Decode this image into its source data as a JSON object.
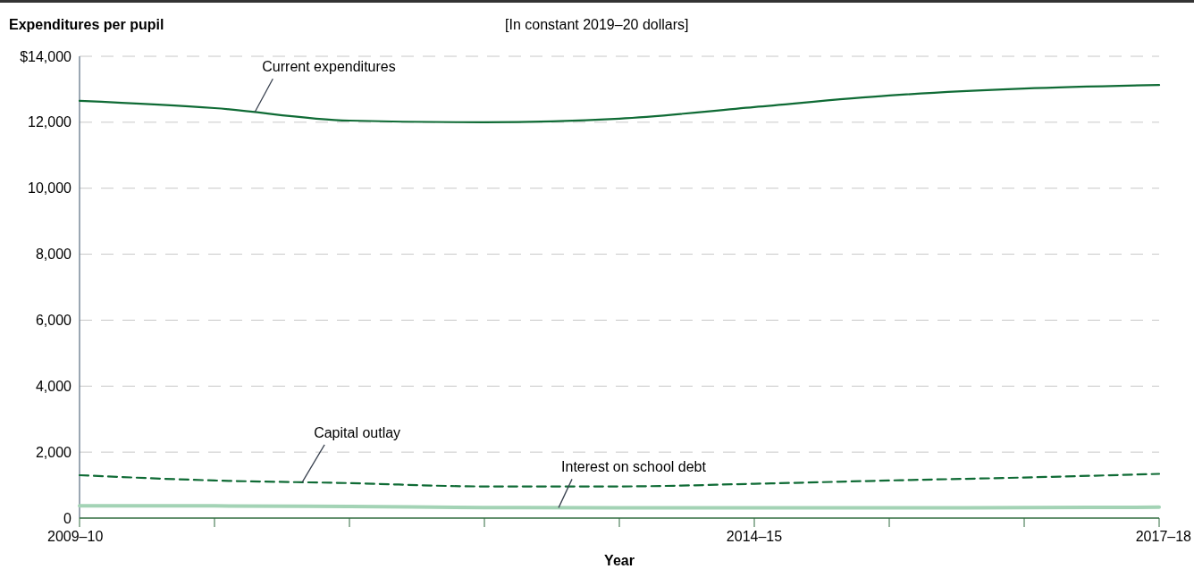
{
  "chart_data": {
    "type": "line",
    "subtitle": "[In constant 2019–20 dollars]",
    "ylabel": "Expenditures per pupil",
    "xlabel": "Year",
    "categories": [
      "2009–10",
      null,
      null,
      null,
      null,
      "2014–15",
      null,
      null,
      "2017–18"
    ],
    "series": [
      {
        "name": "Current expenditures",
        "color": "#0f6b35",
        "line_style": "solid",
        "values": [
          12650,
          12430,
          12050,
          12000,
          12110,
          12460,
          12810,
          13020,
          13130
        ]
      },
      {
        "name": "Capital outlay",
        "color": "#0f6b35",
        "line_style": "dashed",
        "values": [
          1300,
          1140,
          1060,
          960,
          960,
          1040,
          1140,
          1230,
          1340
        ]
      },
      {
        "name": "Interest on school debt",
        "color": "#a3d3b5",
        "line_style": "solid",
        "values": [
          370,
          370,
          350,
          320,
          310,
          310,
          310,
          320,
          330
        ]
      }
    ],
    "ylim": [
      0,
      14000
    ],
    "yticks": [
      0,
      {
        "value": 2000,
        "label": "2,000"
      },
      {
        "value": 4000,
        "label": "4,000"
      },
      {
        "value": 6000,
        "label": "6,000"
      },
      {
        "value": 8000,
        "label": "8,000"
      },
      {
        "value": 10000,
        "label": "10,000"
      },
      {
        "value": 12000,
        "label": "12,000"
      },
      {
        "value": 14000,
        "label": "$14,000"
      }
    ],
    "grid": "y",
    "marker": "none"
  }
}
